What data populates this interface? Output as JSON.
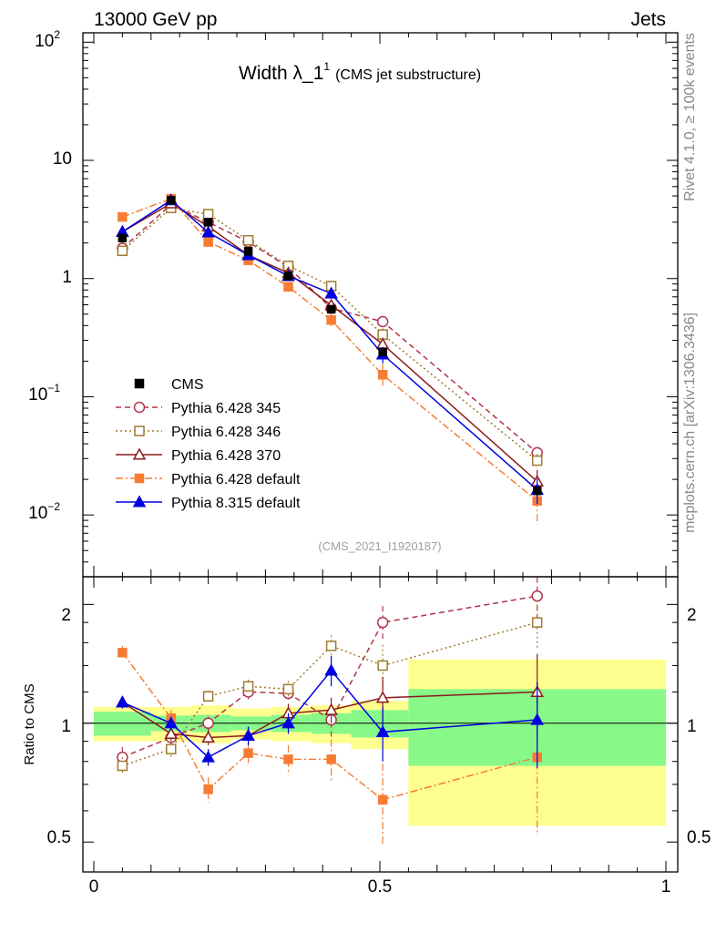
{
  "header": {
    "energy": "13000 GeV pp",
    "category": "Jets"
  },
  "side": {
    "rivet": "Rivet 4.1.0, ≥ 100k events",
    "mcplots": "mcplots.cern.ch [arXiv:1306.3436]"
  },
  "main": {
    "title_main": "Width λ_1",
    "title_sup": "1",
    "title_sub": "(CMS jet substructure)",
    "analysis_id": "(CMS_2021_I1920187)",
    "y_ticks": [
      {
        "base": "10",
        "exp": "2"
      },
      {
        "base": "10",
        "exp": ""
      },
      {
        "base": "1",
        "exp": ""
      },
      {
        "base": "10",
        "exp": "−1"
      },
      {
        "base": "10",
        "exp": "−2"
      }
    ]
  },
  "ratio": {
    "ylabel": "Ratio to CMS",
    "y_ticks": [
      "2",
      "1",
      "0.5"
    ]
  },
  "x_ticks": [
    "0",
    "0.5",
    "1"
  ],
  "chart_data": {
    "type": "line",
    "x_range": [
      0,
      1
    ],
    "y_range_log": [
      0.003,
      120
    ],
    "ratio_range_log": [
      0.42,
      2.35
    ],
    "bin_edges": [
      0.0,
      0.1,
      0.17,
      0.24,
      0.31,
      0.38,
      0.45,
      0.55,
      1.0
    ],
    "x": [
      0.05,
      0.135,
      0.2,
      0.27,
      0.34,
      0.415,
      0.505,
      0.775
    ],
    "reference": {
      "name": "CMS",
      "values": [
        2.2,
        4.6,
        3.0,
        1.7,
        1.05,
        0.55,
        0.24,
        0.016
      ],
      "color": "#000000",
      "marker": "square"
    },
    "ratio_bands": {
      "stat": [
        0.07,
        0.045,
        0.05,
        0.04,
        0.05,
        0.06,
        0.08,
        0.22
      ],
      "total": [
        0.1,
        0.1,
        0.11,
        0.09,
        0.1,
        0.11,
        0.14,
        0.45
      ],
      "stat_color": "#88f889",
      "total_color": "#fefe8e"
    },
    "series": [
      {
        "name": "Pythia 6.428 345",
        "color": "#b2334c",
        "dash": "6,4",
        "marker": "circle-open",
        "ratio": [
          0.82,
          0.92,
          1.0,
          1.2,
          1.19,
          1.02,
          1.8,
          2.1
        ],
        "ratio_err": [
          0.05,
          0.04,
          0.04,
          0.05,
          0.06,
          0.1,
          0.18,
          0.25
        ]
      },
      {
        "name": "Pythia 6.428 346",
        "color": "#a07a2e",
        "dash": "2,3",
        "marker": "square-open",
        "ratio": [
          0.78,
          0.86,
          1.17,
          1.24,
          1.22,
          1.57,
          1.4,
          1.8
        ],
        "ratio_err": [
          0.04,
          0.04,
          0.04,
          0.05,
          0.06,
          0.1,
          0.18,
          0.25
        ]
      },
      {
        "name": "Pythia 6.428 370",
        "color": "#8b1a1a",
        "dash": "",
        "marker": "triangle-open",
        "ratio": [
          1.13,
          0.94,
          0.92,
          0.93,
          1.06,
          1.08,
          1.16,
          1.2
        ],
        "ratio_err": [
          0.04,
          0.04,
          0.04,
          0.05,
          0.06,
          0.08,
          0.15,
          0.3
        ]
      },
      {
        "name": "Pythia 6.428 default",
        "color": "#f77c33",
        "dash": "8,3,2,3",
        "marker": "square",
        "ratio": [
          1.51,
          1.03,
          0.68,
          0.84,
          0.81,
          0.81,
          0.64,
          0.82
        ],
        "ratio_err": [
          0.06,
          0.05,
          0.05,
          0.06,
          0.07,
          0.1,
          0.15,
          0.3
        ]
      },
      {
        "name": "Pythia 8.315 default",
        "color": "#0000e0",
        "dash": "",
        "marker": "triangle",
        "ratio": [
          1.13,
          1.0,
          0.82,
          0.93,
          1.0,
          1.36,
          0.95,
          1.02
        ],
        "ratio_err": [
          0.04,
          0.04,
          0.04,
          0.05,
          0.06,
          0.12,
          0.15,
          0.25
        ]
      }
    ]
  }
}
